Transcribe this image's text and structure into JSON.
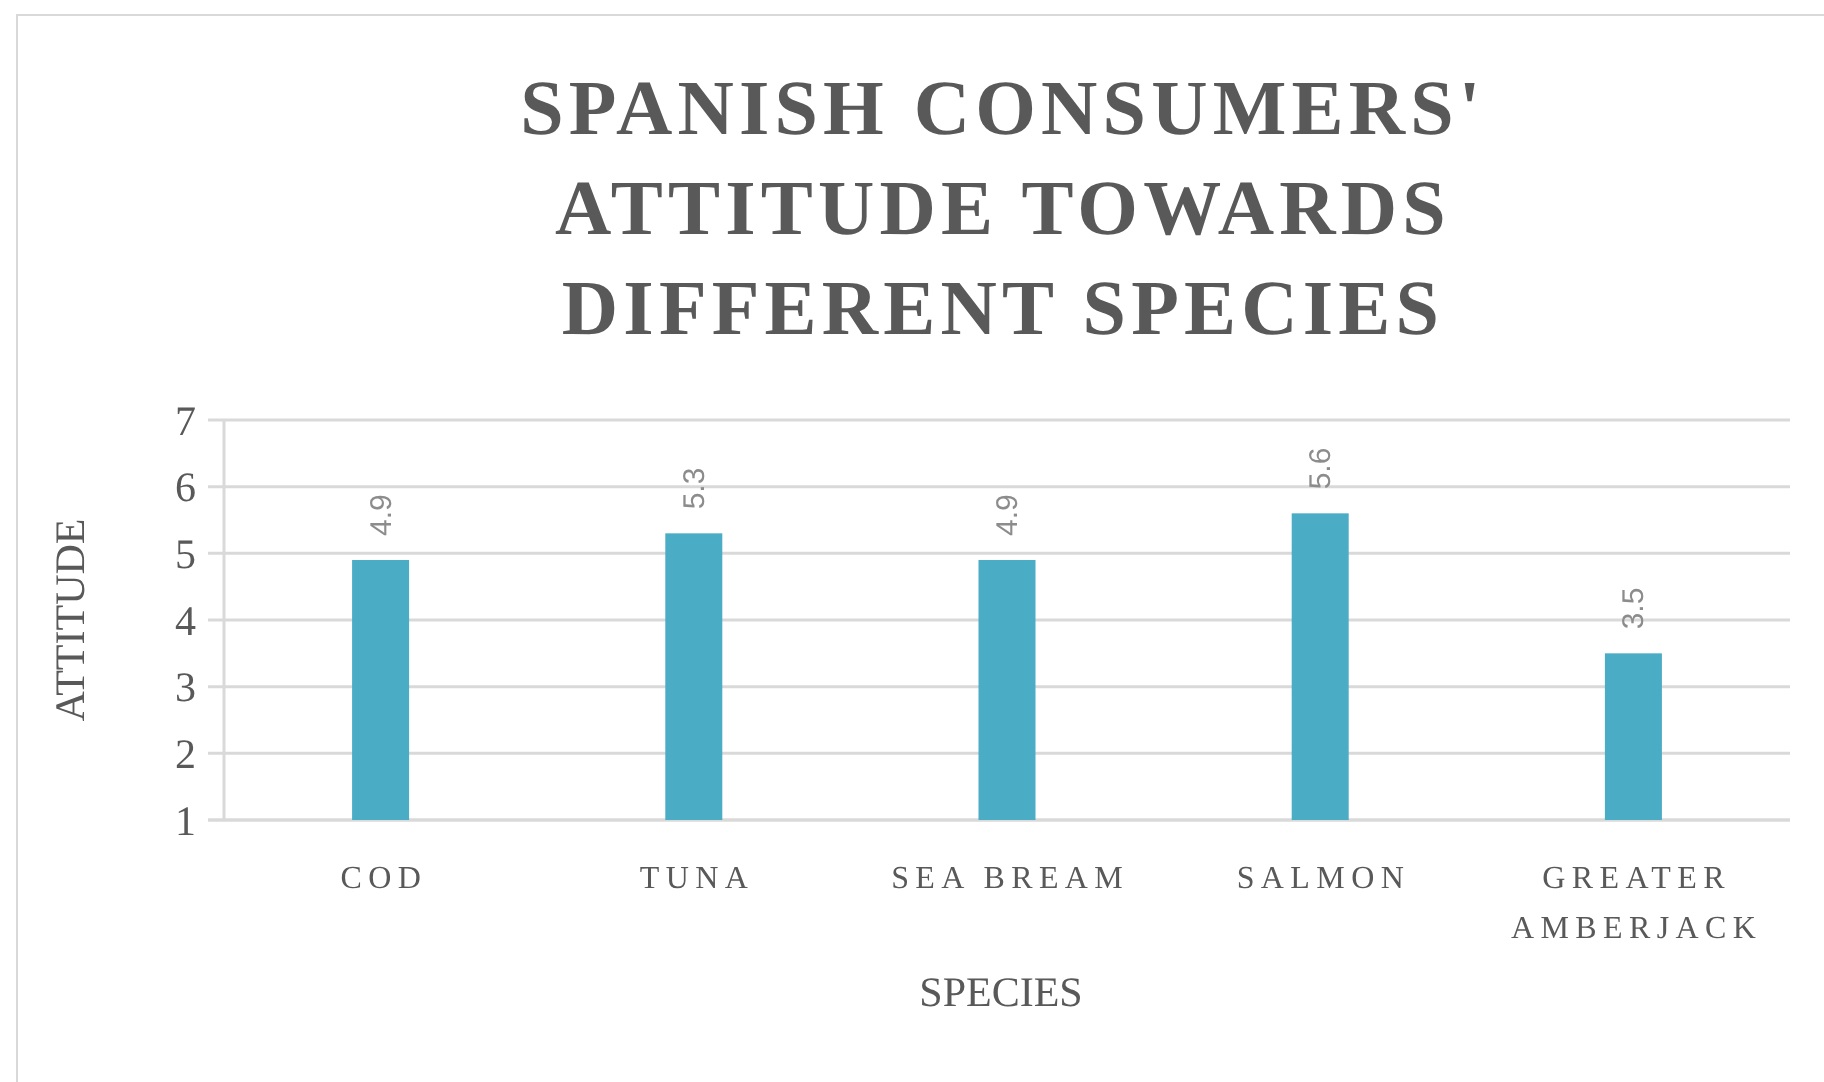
{
  "chart_data": {
    "type": "bar",
    "title": "SPANISH CONSUMERS' ATTITUDE TOWARDS DIFFERENT SPECIES",
    "xlabel": "SPECIES",
    "ylabel": "ATTITUDE",
    "categories": [
      "COD",
      "TUNA",
      "SEA BREAM",
      "SALMON",
      "GREATER AMBERJACK"
    ],
    "values": [
      4.9,
      5.3,
      4.9,
      5.6,
      3.5
    ],
    "color": "#4bacc6",
    "ylim": [
      1,
      7
    ],
    "yticks": [
      1,
      2,
      3,
      4,
      5,
      6,
      7
    ],
    "grid": "y",
    "data_labels": true
  }
}
